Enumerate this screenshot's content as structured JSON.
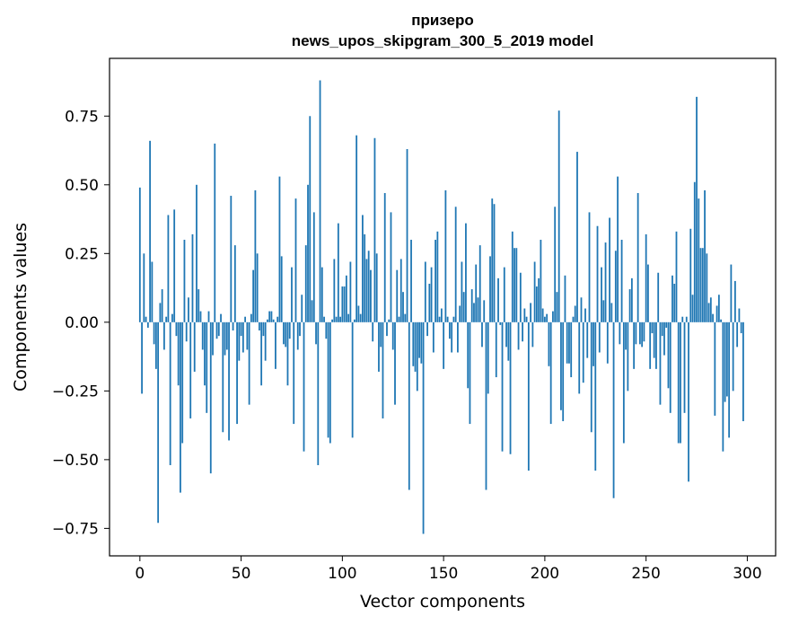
{
  "chart_data": {
    "type": "bar",
    "title_line1": "призеро",
    "title_line2": "news_upos_skipgram_300_5_2019 model",
    "xlabel": "Vector components",
    "ylabel": "Components values",
    "xlim": [
      -15,
      314
    ],
    "ylim": [
      -0.85,
      0.96
    ],
    "x_ticks": [
      0,
      50,
      100,
      150,
      200,
      250,
      300
    ],
    "x_tick_labels": [
      "0",
      "50",
      "100",
      "150",
      "200",
      "250",
      "300"
    ],
    "y_ticks": [
      0.75,
      0.5,
      0.25,
      0.0,
      -0.25,
      -0.5,
      -0.75
    ],
    "y_tick_labels": [
      "0.75",
      "0.50",
      "0.25",
      "0.00",
      "−0.25",
      "−0.50",
      "−0.75"
    ],
    "bar_color": "#1f77b4",
    "values": [
      0.49,
      -0.26,
      0.25,
      0.02,
      -0.02,
      0.66,
      0.22,
      -0.08,
      -0.17,
      -0.73,
      0.07,
      0.12,
      -0.1,
      0.02,
      0.39,
      -0.52,
      0.03,
      0.41,
      -0.05,
      -0.23,
      -0.62,
      -0.44,
      0.3,
      -0.07,
      0.09,
      -0.35,
      0.32,
      -0.18,
      0.5,
      0.12,
      0.04,
      -0.1,
      -0.23,
      -0.33,
      0.04,
      -0.55,
      -0.12,
      0.65,
      -0.06,
      -0.05,
      0.03,
      -0.4,
      -0.12,
      -0.1,
      -0.43,
      0.46,
      -0.03,
      0.28,
      -0.37,
      -0.14,
      -0.05,
      -0.11,
      0.02,
      -0.1,
      -0.3,
      0.03,
      0.19,
      0.48,
      0.25,
      -0.03,
      -0.23,
      -0.05,
      -0.14,
      0.01,
      0.04,
      0.04,
      0.01,
      -0.17,
      0.02,
      0.53,
      0.24,
      -0.08,
      -0.09,
      -0.23,
      -0.06,
      0.2,
      -0.37,
      0.45,
      -0.1,
      -0.05,
      0.1,
      -0.47,
      0.28,
      0.5,
      0.75,
      0.08,
      0.4,
      -0.08,
      -0.52,
      0.88,
      0.2,
      0.02,
      -0.06,
      -0.42,
      -0.44,
      0.01,
      0.23,
      0.02,
      0.36,
      0.02,
      0.13,
      0.13,
      0.17,
      0.03,
      0.22,
      -0.42,
      0.01,
      0.68,
      0.06,
      0.03,
      0.39,
      0.32,
      0.23,
      0.26,
      0.19,
      -0.07,
      0.67,
      0.25,
      -0.18,
      -0.09,
      -0.35,
      0.47,
      -0.05,
      0.01,
      0.4,
      -0.1,
      -0.3,
      0.19,
      0.02,
      0.23,
      0.11,
      0.03,
      0.63,
      -0.61,
      0.3,
      -0.16,
      -0.18,
      -0.25,
      -0.13,
      -0.15,
      -0.77,
      0.22,
      -0.05,
      0.14,
      0.2,
      -0.11,
      0.3,
      0.33,
      0.02,
      0.05,
      -0.17,
      0.48,
      0.02,
      -0.06,
      -0.11,
      0.02,
      0.42,
      -0.11,
      0.06,
      0.22,
      0.11,
      0.36,
      -0.24,
      -0.37,
      0.12,
      0.07,
      0.21,
      0.09,
      0.28,
      -0.09,
      0.08,
      -0.61,
      -0.26,
      0.24,
      0.45,
      0.43,
      -0.2,
      0.16,
      -0.01,
      -0.47,
      0.2,
      -0.09,
      -0.14,
      -0.48,
      0.33,
      0.27,
      0.27,
      -0.1,
      0.18,
      -0.07,
      0.05,
      0.02,
      -0.54,
      0.07,
      -0.09,
      0.22,
      0.13,
      0.16,
      0.3,
      0.05,
      0.02,
      0.03,
      -0.16,
      -0.37,
      0.04,
      0.42,
      0.11,
      0.77,
      -0.32,
      -0.36,
      0.17,
      -0.15,
      -0.15,
      -0.2,
      0.02,
      0.06,
      0.62,
      -0.26,
      0.09,
      -0.22,
      0.05,
      -0.13,
      0.4,
      -0.4,
      -0.16,
      -0.54,
      0.35,
      -0.11,
      0.2,
      0.08,
      0.29,
      -0.15,
      0.38,
      0.07,
      -0.64,
      0.26,
      0.53,
      -0.08,
      0.3,
      -0.44,
      -0.1,
      -0.25,
      0.12,
      0.16,
      -0.17,
      -0.08,
      0.47,
      -0.08,
      -0.09,
      -0.07,
      0.32,
      0.21,
      -0.17,
      -0.04,
      -0.13,
      -0.17,
      0.18,
      -0.3,
      -0.05,
      -0.12,
      -0.02,
      -0.24,
      -0.33,
      0.17,
      0.14,
      0.33,
      -0.44,
      -0.44,
      0.02,
      -0.33,
      0.02,
      -0.58,
      0.34,
      0.1,
      0.51,
      0.82,
      0.45,
      0.27,
      0.27,
      0.48,
      0.25,
      0.07,
      0.09,
      0.03,
      -0.34,
      0.06,
      0.1,
      0.01,
      -0.47,
      -0.29,
      -0.27,
      -0.42,
      0.21,
      -0.25,
      0.15,
      -0.09,
      0.05,
      -0.04,
      -0.36
    ]
  }
}
